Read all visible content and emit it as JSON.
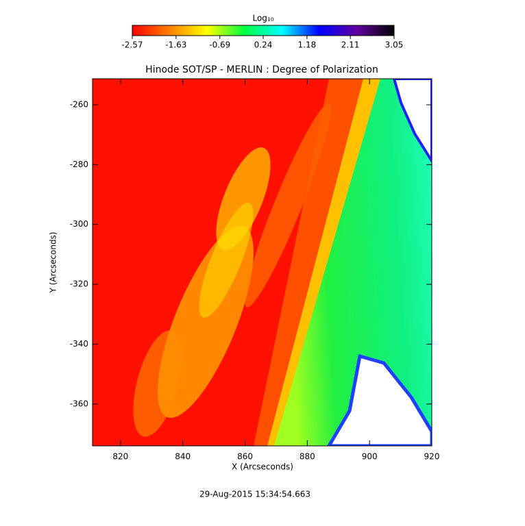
{
  "chart_data": {
    "type": "image",
    "title": "Hinode SOT/SP - MERLIN : Degree of Polarization",
    "x_label": "X (Arcseconds)",
    "y_label": "Y (Arcseconds)",
    "xlim": [
      811,
      920
    ],
    "ylim": [
      -374,
      -251.3
    ],
    "xticks": [
      820,
      840,
      860,
      880,
      900,
      920
    ],
    "yticks": [
      -260,
      -280,
      -300,
      -320,
      -340,
      -360
    ],
    "colorbar_label": "Log₁₀",
    "clim": [
      -2.57,
      3.05
    ],
    "cticks": [
      -2.57,
      -1.63,
      -0.69,
      0.24,
      1.18,
      2.11,
      3.05
    ],
    "colormap": [
      "#ff0000",
      "#ff8000",
      "#ffff00",
      "#00ff40",
      "#00ffff",
      "#0000ff",
      "#6000a0",
      "#000000"
    ],
    "timestamp": "29-Aug-2015 15:34:54.663"
  }
}
